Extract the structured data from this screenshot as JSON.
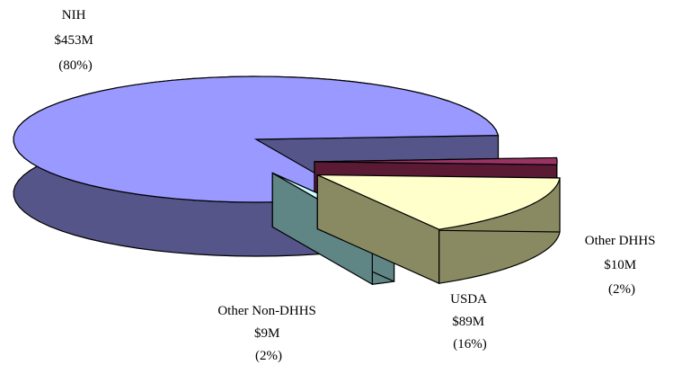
{
  "chart_data": {
    "type": "pie",
    "style": "3d-exploded",
    "title": "",
    "slices": [
      {
        "label": "NIH",
        "amount": "$453M",
        "percent": "(80%)",
        "value": 453,
        "color": "#9999ff",
        "side_color": "#55558a"
      },
      {
        "label": "Other DHHS",
        "amount": "$10M",
        "percent": "(2%)",
        "value": 10,
        "color": "#993366",
        "side_color": "#5a1a33"
      },
      {
        "label": "USDA",
        "amount": "$89M",
        "percent": "(16%)",
        "value": 89,
        "color": "#ffffcc",
        "side_color": "#8a8a62"
      },
      {
        "label": "Other Non-DHHS",
        "amount": "$9M",
        "percent": "(2%)",
        "value": 9,
        "color": "#ccffff",
        "side_color": "#5f8585"
      }
    ]
  }
}
